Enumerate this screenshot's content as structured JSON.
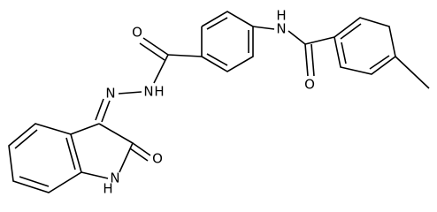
{
  "atoms": [
    {
      "label": "O"
    },
    {
      "label": "H"
    },
    {
      "label": "N"
    },
    {
      "label": "O"
    },
    {
      "label": "N"
    },
    {
      "label": "H"
    },
    {
      "label": "N"
    },
    {
      "label": "O"
    },
    {
      "label": "H"
    },
    {
      "label": "N"
    }
  ]
}
